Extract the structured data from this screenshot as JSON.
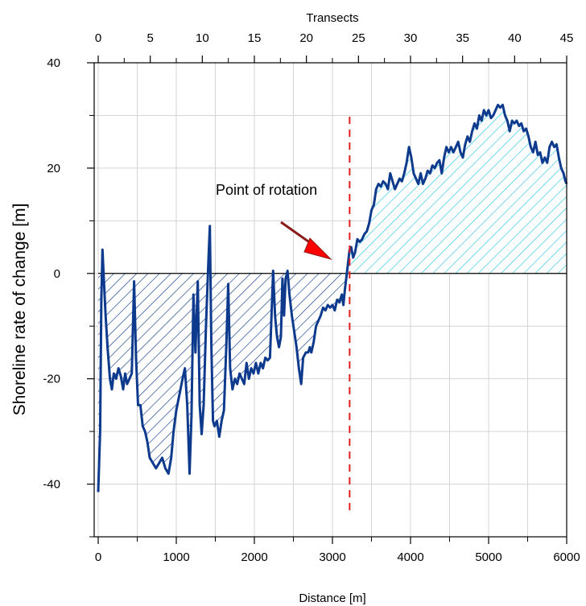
{
  "chart_data": {
    "type": "area",
    "xlabel": "Distance [m]",
    "x2label": "Transects",
    "ylabel": "Shoreline rate of change [m]",
    "xlim": [
      0,
      6000
    ],
    "ylim": [
      -50,
      40
    ],
    "x2lim": [
      0,
      45
    ],
    "x_ticks": [
      0,
      1000,
      2000,
      3000,
      4000,
      5000,
      6000
    ],
    "x2_ticks": [
      0,
      5,
      10,
      15,
      20,
      25,
      30,
      35,
      40,
      45
    ],
    "y_ticks": [
      -40,
      -20,
      0,
      20,
      40
    ],
    "grid": true,
    "series": [
      {
        "color": "#0d3a8c",
        "points": [
          [
            0,
            -41.5
          ],
          [
            25,
            -30
          ],
          [
            40,
            -5
          ],
          [
            55,
            4.5
          ],
          [
            75,
            -2
          ],
          [
            95,
            -8
          ],
          [
            120,
            -14
          ],
          [
            150,
            -20
          ],
          [
            175,
            -22
          ],
          [
            200,
            -19
          ],
          [
            230,
            -20
          ],
          [
            260,
            -18
          ],
          [
            290,
            -19.5
          ],
          [
            320,
            -22
          ],
          [
            345,
            -19
          ],
          [
            370,
            -21
          ],
          [
            400,
            -20
          ],
          [
            430,
            -19
          ],
          [
            460,
            -1.5
          ],
          [
            485,
            -16
          ],
          [
            510,
            -25
          ],
          [
            540,
            -25
          ],
          [
            570,
            -29
          ],
          [
            600,
            -30
          ],
          [
            630,
            -32
          ],
          [
            660,
            -35
          ],
          [
            700,
            -36
          ],
          [
            740,
            -37
          ],
          [
            780,
            -36
          ],
          [
            820,
            -35
          ],
          [
            860,
            -37
          ],
          [
            900,
            -38
          ],
          [
            935,
            -35
          ],
          [
            965,
            -30
          ],
          [
            1000,
            -26
          ],
          [
            1040,
            -23
          ],
          [
            1080,
            -20
          ],
          [
            1110,
            -18
          ],
          [
            1140,
            -25
          ],
          [
            1170,
            -38
          ],
          [
            1195,
            -27
          ],
          [
            1220,
            -4
          ],
          [
            1245,
            -15
          ],
          [
            1275,
            -1.5
          ],
          [
            1300,
            -25
          ],
          [
            1325,
            -30.5
          ],
          [
            1350,
            -25
          ],
          [
            1380,
            -10
          ],
          [
            1410,
            2
          ],
          [
            1430,
            9
          ],
          [
            1450,
            -14
          ],
          [
            1470,
            -28
          ],
          [
            1490,
            -29
          ],
          [
            1520,
            -28
          ],
          [
            1550,
            -31
          ],
          [
            1580,
            -28
          ],
          [
            1610,
            -26
          ],
          [
            1640,
            -14
          ],
          [
            1665,
            -2
          ],
          [
            1690,
            -18
          ],
          [
            1720,
            -22
          ],
          [
            1750,
            -20
          ],
          [
            1780,
            -21
          ],
          [
            1810,
            -19
          ],
          [
            1840,
            -20
          ],
          [
            1870,
            -21
          ],
          [
            1900,
            -17
          ],
          [
            1930,
            -20
          ],
          [
            1960,
            -18
          ],
          [
            1990,
            -19
          ],
          [
            2020,
            -17
          ],
          [
            2050,
            -19
          ],
          [
            2080,
            -17
          ],
          [
            2110,
            -18
          ],
          [
            2140,
            -16
          ],
          [
            2170,
            -16.5
          ],
          [
            2200,
            -16
          ],
          [
            2220,
            -8
          ],
          [
            2240,
            0.5
          ],
          [
            2265,
            -8
          ],
          [
            2290,
            -12
          ],
          [
            2315,
            -14
          ],
          [
            2340,
            -12
          ],
          [
            2360,
            -1
          ],
          [
            2380,
            -8
          ],
          [
            2400,
            -1
          ],
          [
            2425,
            0.5
          ],
          [
            2450,
            -4
          ],
          [
            2480,
            -8
          ],
          [
            2510,
            -11
          ],
          [
            2540,
            -14
          ],
          [
            2570,
            -18
          ],
          [
            2600,
            -21
          ],
          [
            2625,
            -16
          ],
          [
            2660,
            -15
          ],
          [
            2690,
            -15
          ],
          [
            2710,
            -14
          ],
          [
            2730,
            -15
          ],
          [
            2760,
            -13
          ],
          [
            2790,
            -10
          ],
          [
            2820,
            -9
          ],
          [
            2850,
            -8
          ],
          [
            2880,
            -6.5
          ],
          [
            2910,
            -7
          ],
          [
            2940,
            -6
          ],
          [
            2970,
            -6.5
          ],
          [
            3000,
            -6
          ],
          [
            3030,
            -7
          ],
          [
            3060,
            -5
          ],
          [
            3090,
            -5.5
          ],
          [
            3120,
            -4
          ],
          [
            3140,
            -6
          ],
          [
            3160,
            -3
          ],
          [
            3180,
            -0.5
          ],
          [
            3200,
            2
          ],
          [
            3220,
            4.5
          ],
          [
            3240,
            5
          ],
          [
            3265,
            3
          ],
          [
            3290,
            4
          ],
          [
            3320,
            6.5
          ],
          [
            3350,
            6
          ],
          [
            3380,
            6.5
          ],
          [
            3410,
            7.5
          ],
          [
            3440,
            8
          ],
          [
            3470,
            9.5
          ],
          [
            3500,
            12
          ],
          [
            3530,
            13
          ],
          [
            3560,
            16
          ],
          [
            3590,
            17
          ],
          [
            3620,
            16.5
          ],
          [
            3650,
            17.5
          ],
          [
            3680,
            17
          ],
          [
            3710,
            16
          ],
          [
            3740,
            19
          ],
          [
            3770,
            17.5
          ],
          [
            3800,
            16
          ],
          [
            3830,
            17
          ],
          [
            3860,
            18
          ],
          [
            3890,
            17.5
          ],
          [
            3920,
            19
          ],
          [
            3950,
            21
          ],
          [
            3980,
            24
          ],
          [
            4010,
            22
          ],
          [
            4040,
            19
          ],
          [
            4070,
            18
          ],
          [
            4100,
            17
          ],
          [
            4130,
            19
          ],
          [
            4160,
            17
          ],
          [
            4190,
            18
          ],
          [
            4220,
            19.5
          ],
          [
            4250,
            19
          ],
          [
            4280,
            20.5
          ],
          [
            4310,
            20
          ],
          [
            4340,
            21
          ],
          [
            4370,
            21.5
          ],
          [
            4400,
            19
          ],
          [
            4430,
            22
          ],
          [
            4460,
            24
          ],
          [
            4490,
            23
          ],
          [
            4520,
            24
          ],
          [
            4550,
            23
          ],
          [
            4580,
            24
          ],
          [
            4610,
            25
          ],
          [
            4640,
            23
          ],
          [
            4670,
            22
          ],
          [
            4700,
            24.5
          ],
          [
            4730,
            26
          ],
          [
            4760,
            25
          ],
          [
            4790,
            27
          ],
          [
            4820,
            28.5
          ],
          [
            4850,
            27.5
          ],
          [
            4880,
            30
          ],
          [
            4910,
            29
          ],
          [
            4940,
            31
          ],
          [
            4970,
            30
          ],
          [
            5000,
            31
          ],
          [
            5030,
            29.5
          ],
          [
            5060,
            30
          ],
          [
            5090,
            31
          ],
          [
            5120,
            32
          ],
          [
            5150,
            31.5
          ],
          [
            5180,
            32
          ],
          [
            5210,
            30
          ],
          [
            5240,
            29
          ],
          [
            5270,
            27
          ],
          [
            5300,
            29
          ],
          [
            5330,
            28.5
          ],
          [
            5360,
            29
          ],
          [
            5390,
            28
          ],
          [
            5420,
            28.5
          ],
          [
            5450,
            27
          ],
          [
            5480,
            27.5
          ],
          [
            5510,
            26
          ],
          [
            5540,
            24
          ],
          [
            5570,
            23
          ],
          [
            5600,
            25
          ],
          [
            5630,
            22.5
          ],
          [
            5660,
            23
          ],
          [
            5690,
            21
          ],
          [
            5720,
            22
          ],
          [
            5750,
            21
          ],
          [
            5780,
            24
          ],
          [
            5810,
            25
          ],
          [
            5840,
            24
          ],
          [
            5870,
            24.5
          ],
          [
            5900,
            22
          ],
          [
            5930,
            20
          ],
          [
            5960,
            19
          ],
          [
            5985,
            17.5
          ],
          [
            6000,
            17
          ]
        ]
      }
    ],
    "rotation_x": 3220,
    "annotations": [
      {
        "text": "Point of rotation",
        "x": 2600,
        "y": 16
      }
    ],
    "fill_colors": {
      "negative": "#0d3a8c",
      "positive": "#2bc3e8"
    },
    "line_color": "#0d3a8c",
    "vline_color": "#e02020",
    "arrow_color": "#8b1a1a",
    "arrow_head_color": "#ff0000"
  }
}
